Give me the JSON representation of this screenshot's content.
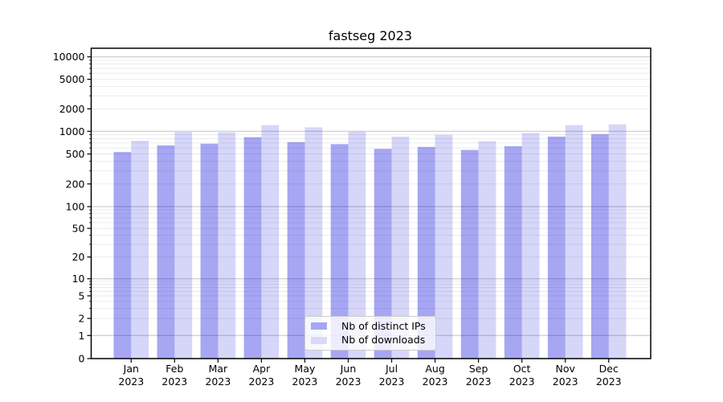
{
  "title": "fastseg 2023",
  "colors": {
    "ips_fill": "rgba(0,0,220,0.35)",
    "downloads_fill": "rgba(0,0,220,0.16)",
    "ips_solid": "#a6a6f2",
    "downloads_solid": "#d9d9f9",
    "grid_major": "#c3c3c3",
    "grid_minor": "#eaeaea",
    "spine": "#000000",
    "tick_text": "#000000"
  },
  "legend": {
    "items": [
      {
        "label": "Nb of distinct IPs",
        "color_key": "ips_solid"
      },
      {
        "label": "Nb of downloads",
        "color_key": "downloads_solid"
      }
    ]
  },
  "chart_data": {
    "type": "bar",
    "title": "fastseg 2023",
    "categories": [
      "Jan 2023",
      "Feb 2023",
      "Mar 2023",
      "Apr 2023",
      "May 2023",
      "Jun 2023",
      "Jul 2023",
      "Aug 2023",
      "Sep 2023",
      "Oct 2023",
      "Nov 2023",
      "Dec 2023"
    ],
    "series": [
      {
        "name": "Nb of distinct IPs",
        "values": [
          530,
          650,
          685,
          835,
          720,
          675,
          585,
          620,
          565,
          635,
          850,
          920
        ]
      },
      {
        "name": "Nb of downloads",
        "values": [
          750,
          980,
          970,
          1210,
          1130,
          985,
          850,
          900,
          740,
          950,
          1210,
          1240
        ]
      }
    ],
    "xlabel": "",
    "ylabel": "",
    "yscale": "log-with-zero",
    "ylim": [
      0,
      13000
    ],
    "y_ticks": [
      10000,
      5000,
      2000,
      1000,
      500,
      200,
      100,
      50,
      20,
      10,
      5,
      2,
      1,
      0
    ],
    "grid": true,
    "legend_position": "lower center"
  }
}
